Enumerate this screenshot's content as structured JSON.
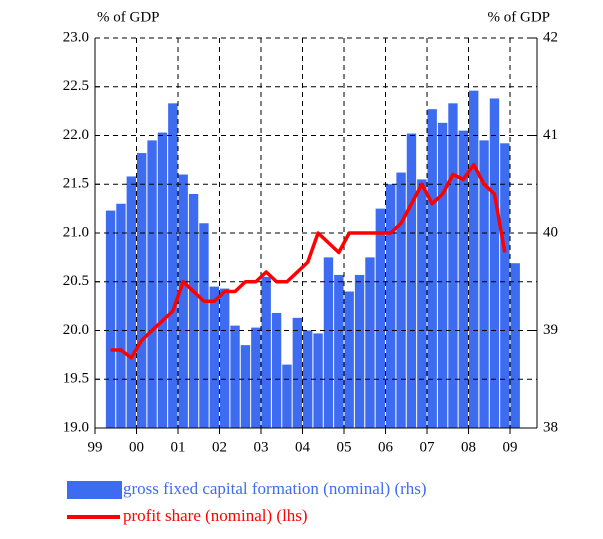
{
  "chart_data": {
    "type": "bar-line",
    "y_unit_label": "% of GDP",
    "y2_unit_label": "% of GDP",
    "x": [
      1999.375,
      1999.625,
      1999.875,
      2000.125,
      2000.375,
      2000.625,
      2000.875,
      2001.125,
      2001.375,
      2001.625,
      2001.875,
      2002.125,
      2002.375,
      2002.625,
      2002.875,
      2003.125,
      2003.375,
      2003.625,
      2003.875,
      2004.125,
      2004.375,
      2004.625,
      2004.875,
      2005.125,
      2005.375,
      2005.625,
      2005.875,
      2006.125,
      2006.375,
      2006.625,
      2006.875,
      2007.125,
      2007.375,
      2007.625,
      2007.875,
      2008.125,
      2008.375,
      2008.625,
      2008.875,
      2009.125
    ],
    "series": [
      {
        "name": "gross fixed capital formation (nominal) (rhs)",
        "kind": "bar",
        "axis": "y2",
        "color": "#3d6cf0",
        "values": [
          40.23,
          40.3,
          40.58,
          40.82,
          40.95,
          41.03,
          41.33,
          40.6,
          40.4,
          40.1,
          39.45,
          39.43,
          39.05,
          38.85,
          39.03,
          39.55,
          39.18,
          38.65,
          39.13,
          39.0,
          38.97,
          39.75,
          39.57,
          39.4,
          39.57,
          39.75,
          40.25,
          40.5,
          40.62,
          41.02,
          40.55,
          41.27,
          41.13,
          41.33,
          41.05,
          41.46,
          40.95,
          41.38,
          40.92,
          39.69
        ]
      },
      {
        "name": "profit share (nominal) (lhs)",
        "kind": "line",
        "axis": "y",
        "color": "#ff0000",
        "values": [
          19.8,
          19.8,
          19.72,
          19.9,
          20.0,
          20.1,
          20.2,
          20.5,
          20.4,
          20.3,
          20.3,
          20.4,
          20.4,
          20.5,
          20.5,
          20.6,
          20.5,
          20.5,
          20.6,
          20.7,
          21.0,
          20.9,
          20.8,
          21.0,
          21.0,
          21.0,
          21.0,
          21.0,
          21.1,
          21.3,
          21.5,
          21.3,
          21.4,
          21.6,
          21.55,
          21.7,
          21.5,
          21.4,
          20.8,
          null
        ]
      }
    ],
    "xlim": [
      1999,
      2009.65
    ],
    "xticks": [
      {
        "value": 1999,
        "label": "99"
      },
      {
        "value": 2000,
        "label": "00"
      },
      {
        "value": 2001,
        "label": "01"
      },
      {
        "value": 2002,
        "label": "02"
      },
      {
        "value": 2003,
        "label": "03"
      },
      {
        "value": 2004,
        "label": "04"
      },
      {
        "value": 2005,
        "label": "05"
      },
      {
        "value": 2006,
        "label": "06"
      },
      {
        "value": 2007,
        "label": "07"
      },
      {
        "value": 2008,
        "label": "08"
      },
      {
        "value": 2009,
        "label": "09"
      }
    ],
    "ylim": [
      19,
      23
    ],
    "yticks": [
      {
        "value": 19,
        "label": "19.0"
      },
      19.5,
      {
        "value": 20,
        "label": "20.0"
      },
      20.5,
      {
        "value": 21,
        "label": "21.0"
      },
      21.5,
      {
        "value": 22,
        "label": "22.0"
      },
      22.5,
      {
        "value": 23,
        "label": "23.0"
      }
    ],
    "y2lim": [
      38,
      42
    ],
    "y2ticks": [
      38,
      39,
      40,
      41,
      42
    ],
    "grid": true
  }
}
